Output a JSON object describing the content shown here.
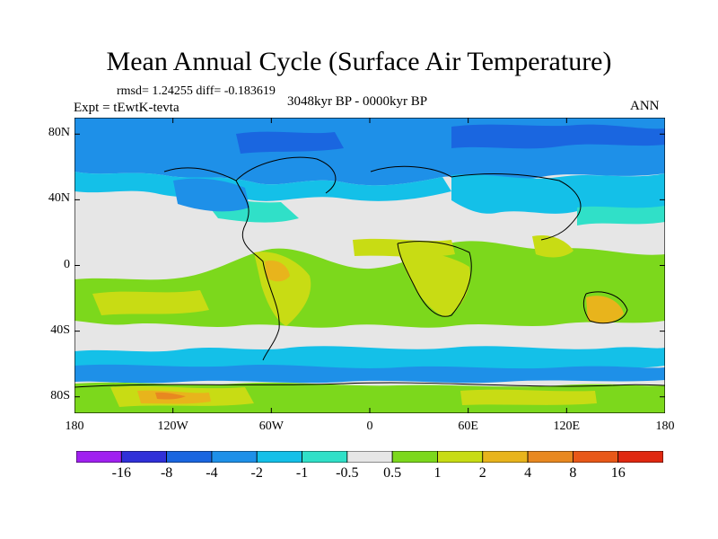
{
  "title": "Mean Annual Cycle (Surface Air Temperature)",
  "stats": "rmsd= 1.24255  diff= -0.183619",
  "experiment": "Expt = tEwtK-tevta",
  "period": "3048kyr BP - 0000kyr BP",
  "season": "ANN",
  "lat_ticks": [
    {
      "value": 80,
      "label": "80N"
    },
    {
      "value": 40,
      "label": "40N"
    },
    {
      "value": 0,
      "label": "0"
    },
    {
      "value": -40,
      "label": "40S"
    },
    {
      "value": -80,
      "label": "80S"
    }
  ],
  "lon_ticks": [
    {
      "value": -180,
      "label": "180"
    },
    {
      "value": -120,
      "label": "120W"
    },
    {
      "value": -60,
      "label": "60W"
    },
    {
      "value": 0,
      "label": "0"
    },
    {
      "value": 60,
      "label": "60E"
    },
    {
      "value": 120,
      "label": "120E"
    },
    {
      "value": 180,
      "label": "180"
    }
  ],
  "colorbar": {
    "colors": [
      "#a020f0",
      "#3030d8",
      "#1a66e0",
      "#1e90e8",
      "#14c0e8",
      "#30e0c8",
      "#e6e6e6",
      "#7cd81c",
      "#c8dc14",
      "#e8b41c",
      "#e88820",
      "#e85818",
      "#e02810"
    ],
    "labels": [
      "-16",
      "-8",
      "-4",
      "-2",
      "-1",
      "-0.5",
      "0.5",
      "1",
      "2",
      "4",
      "8",
      "16"
    ]
  }
}
